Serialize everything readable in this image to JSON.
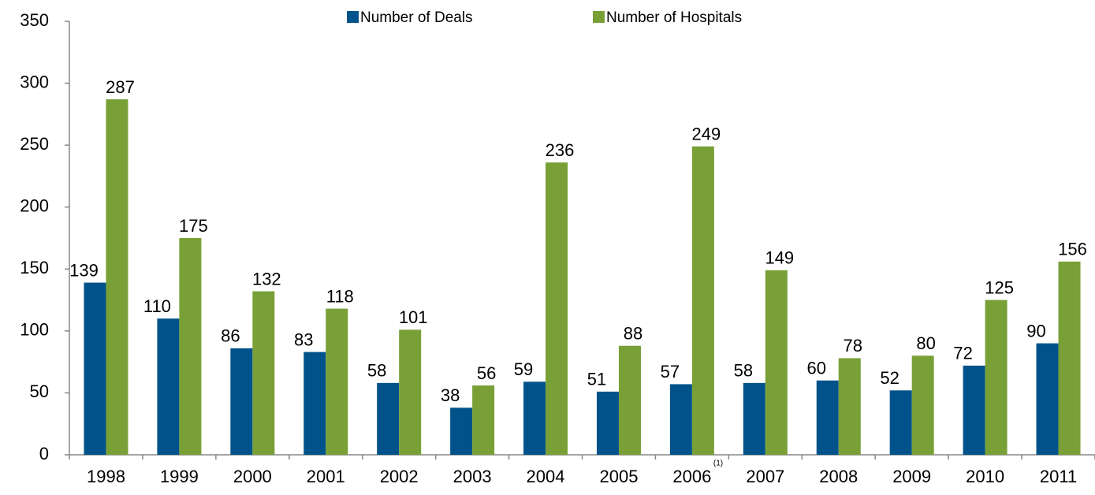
{
  "chart_data": {
    "type": "bar",
    "categories": [
      "1998",
      "1999",
      "2000",
      "2001",
      "2002",
      "2003",
      "2004",
      "2005",
      "2006",
      "2007",
      "2008",
      "2009",
      "2010",
      "2011"
    ],
    "footnote_markers": [
      null,
      null,
      null,
      null,
      null,
      null,
      null,
      null,
      "(1)",
      null,
      null,
      null,
      null,
      null
    ],
    "series": [
      {
        "name": "Number of Deals",
        "color": "#00538a",
        "values": [
          139,
          110,
          86,
          83,
          58,
          38,
          59,
          51,
          57,
          58,
          60,
          52,
          72,
          90
        ]
      },
      {
        "name": "Number of Hospitals",
        "color": "#78a037",
        "values": [
          287,
          175,
          132,
          118,
          101,
          56,
          236,
          88,
          249,
          149,
          78,
          80,
          125,
          156
        ]
      }
    ],
    "ylim": [
      0,
      350
    ],
    "yticks": [
      0,
      50,
      100,
      150,
      200,
      250,
      300,
      350
    ],
    "legend": "top"
  }
}
